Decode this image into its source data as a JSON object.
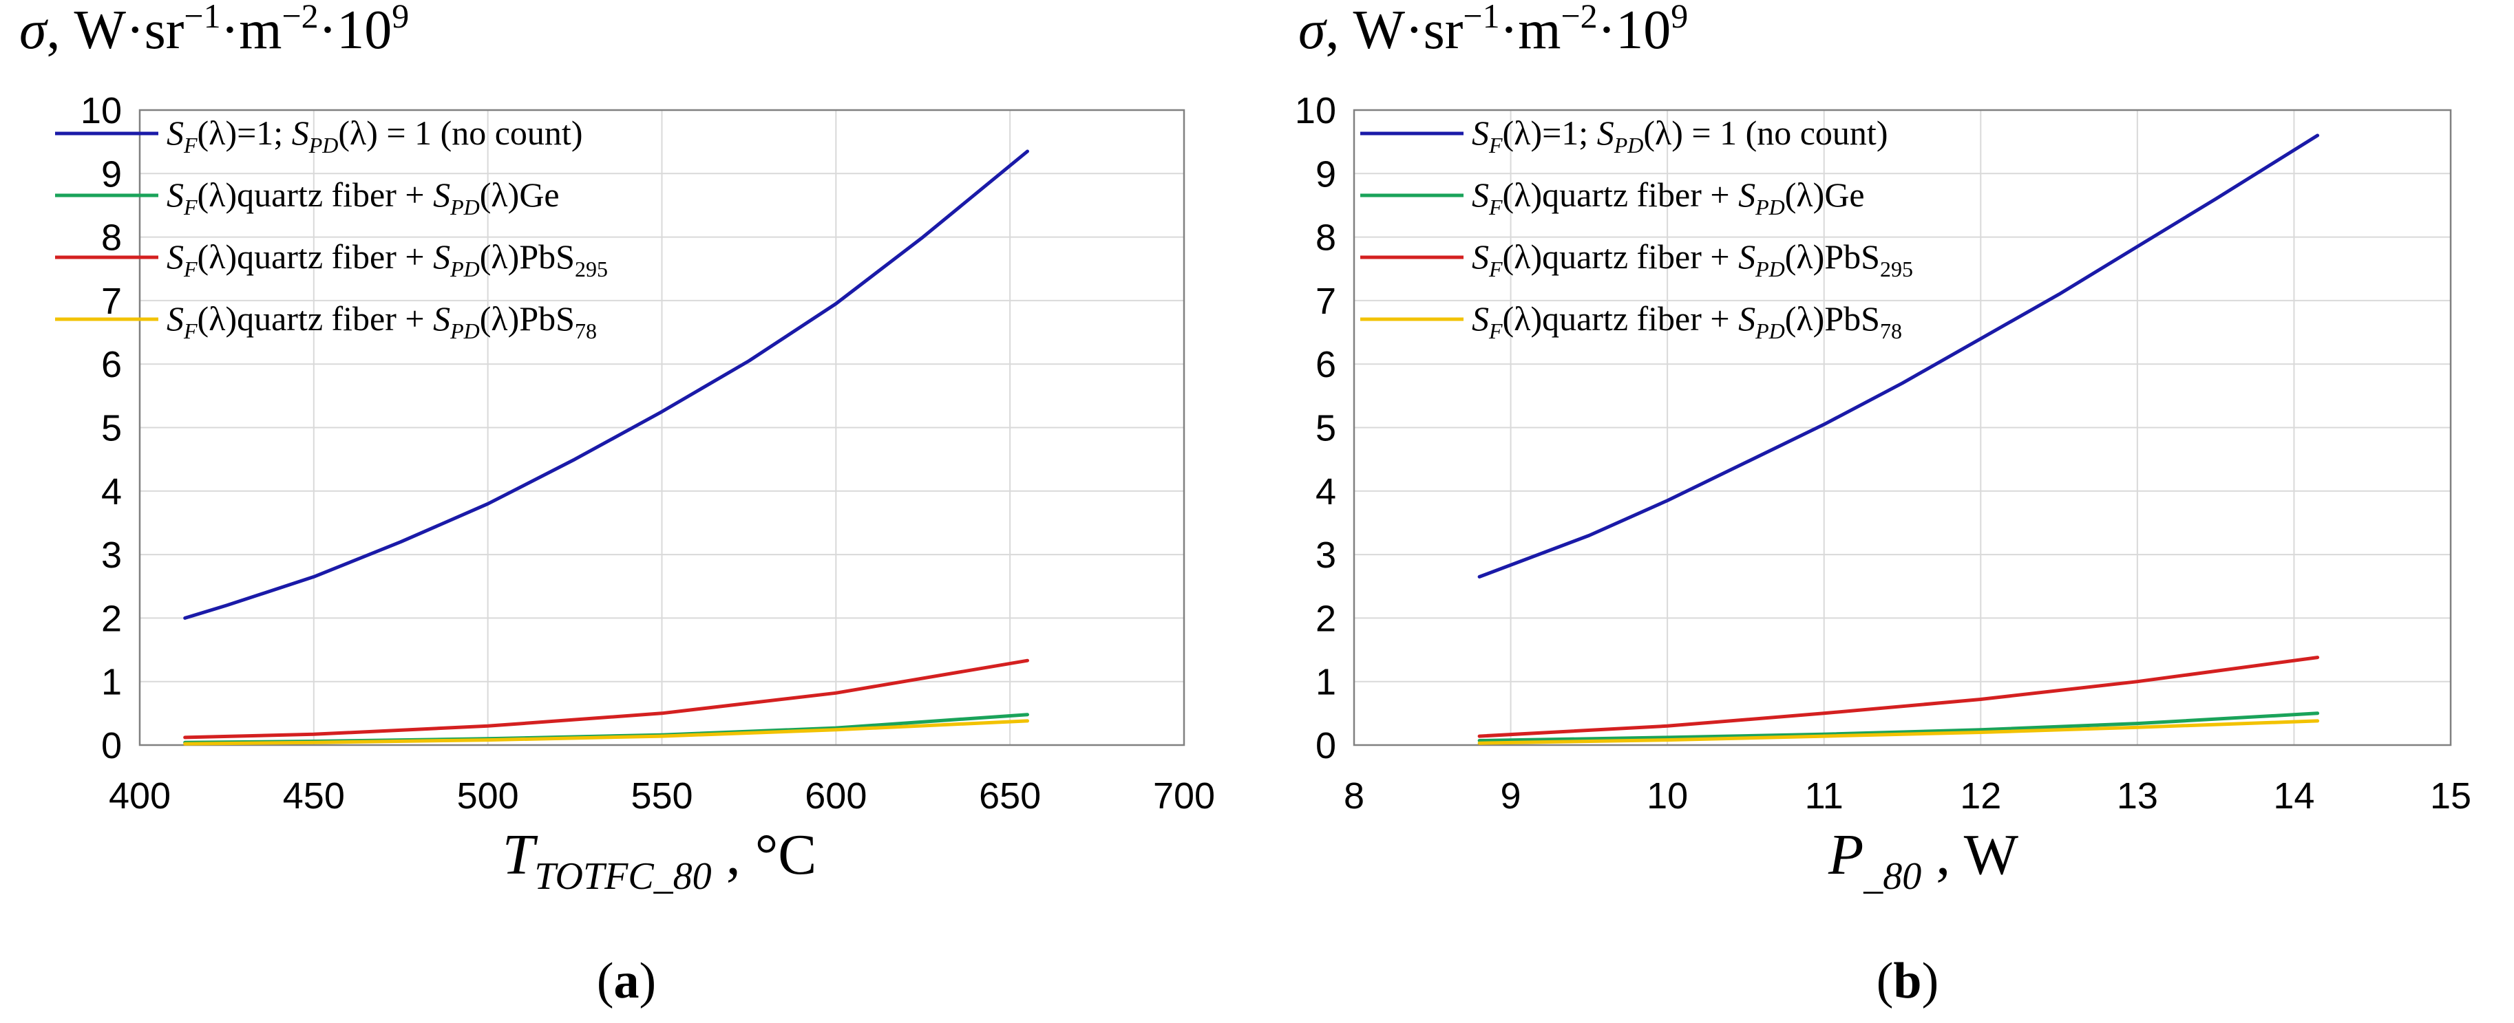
{
  "colors": {
    "blue": "#1a1aa8",
    "green": "#1aa35a",
    "red": "#d42020",
    "yellow": "#f2c200",
    "grid": "#d9d9d9",
    "axis": "#808080"
  },
  "chart_data": [
    {
      "type": "line",
      "panel_label": "(a)",
      "panel_label_letter": "a",
      "y_label": "σ, W·sr⁻¹·m⁻²·10⁹",
      "x_label_main": "T",
      "x_label_sub": "TOTFC_80",
      "x_label_unit": " , °C",
      "xlim": [
        400,
        700
      ],
      "ylim": [
        0,
        10
      ],
      "xticks": [
        "400",
        "450",
        "500",
        "550",
        "600",
        "650",
        "700"
      ],
      "yticks": [
        "0",
        "1",
        "2",
        "3",
        "4",
        "5",
        "6",
        "7",
        "8",
        "9",
        "10"
      ],
      "legend_position": "top-left",
      "series": [
        {
          "name": "S_F(λ)=1; S_PD(λ) = 1 (no count)",
          "color_key": "blue",
          "x": [
            413,
            425,
            450,
            475,
            500,
            525,
            550,
            575,
            600,
            625,
            655
          ],
          "y": [
            2.0,
            2.2,
            2.65,
            3.2,
            3.8,
            4.5,
            5.25,
            6.05,
            6.95,
            8.0,
            9.35
          ]
        },
        {
          "name": "S_F(λ)quartz fiber + S_PD(λ)Ge",
          "color_key": "green",
          "x": [
            413,
            450,
            500,
            550,
            600,
            655
          ],
          "y": [
            0.04,
            0.06,
            0.1,
            0.16,
            0.27,
            0.48
          ]
        },
        {
          "name": "S_F(λ)quartz fiber + S_PD(λ)PbS295",
          "color_key": "red",
          "x": [
            413,
            450,
            500,
            550,
            600,
            655
          ],
          "y": [
            0.12,
            0.17,
            0.3,
            0.5,
            0.82,
            1.33
          ]
        },
        {
          "name": "S_F(λ)quartz fiber + S_PD(λ)PbS78",
          "color_key": "yellow",
          "x": [
            413,
            450,
            500,
            550,
            600,
            655
          ],
          "y": [
            0.02,
            0.04,
            0.08,
            0.14,
            0.24,
            0.38
          ]
        }
      ],
      "legend": [
        {
          "color_key": "blue",
          "s1_main": "S",
          "s1_sub": "F",
          "s1_rest": "(λ)=1;  ",
          "s2_main": "S",
          "s2_sub": "PD",
          "s2_rest": "(λ) = 1 (no count)",
          "suffix_main": "",
          "suffix_sub": ""
        },
        {
          "color_key": "green",
          "s1_main": "S",
          "s1_sub": "F",
          "s1_rest": "(λ)quartz fiber + ",
          "s2_main": "S",
          "s2_sub": "PD",
          "s2_rest": "(λ)",
          "suffix_main": "Ge",
          "suffix_sub": ""
        },
        {
          "color_key": "red",
          "s1_main": "S",
          "s1_sub": "F",
          "s1_rest": "(λ)quartz fiber + ",
          "s2_main": "S",
          "s2_sub": "PD",
          "s2_rest": "(λ)",
          "suffix_main": "PbS",
          "suffix_sub": "295"
        },
        {
          "color_key": "yellow",
          "s1_main": "S",
          "s1_sub": "F",
          "s1_rest": "(λ)quartz fiber + ",
          "s2_main": "S",
          "s2_sub": "PD",
          "s2_rest": "(λ)",
          "suffix_main": "PbS",
          "suffix_sub": "78"
        }
      ]
    },
    {
      "type": "line",
      "panel_label": "(b)",
      "panel_label_letter": "b",
      "y_label": "σ, W·sr⁻¹·m⁻²·10⁹",
      "x_label_main": "P",
      "x_label_sub": "_80",
      "x_label_unit": " , W",
      "xlim": [
        8,
        15
      ],
      "ylim": [
        0,
        10
      ],
      "xticks": [
        "8",
        "9",
        "10",
        "11",
        "12",
        "13",
        "14",
        "15"
      ],
      "yticks": [
        "0",
        "1",
        "2",
        "3",
        "4",
        "5",
        "6",
        "7",
        "8",
        "9",
        "10"
      ],
      "legend_position": "top-left",
      "series": [
        {
          "name": "S_F(λ)=1; S_PD(λ) = 1 (no count)",
          "color_key": "blue",
          "x": [
            8.8,
            9.5,
            10.0,
            10.5,
            11.0,
            11.5,
            12.0,
            12.5,
            13.0,
            13.5,
            14.15
          ],
          "y": [
            2.65,
            3.3,
            3.85,
            4.45,
            5.05,
            5.7,
            6.4,
            7.1,
            7.85,
            8.6,
            9.6
          ]
        },
        {
          "name": "S_F(λ)quartz fiber + S_PD(λ)Ge",
          "color_key": "green",
          "x": [
            8.8,
            10.0,
            11.0,
            12.0,
            13.0,
            14.15
          ],
          "y": [
            0.07,
            0.12,
            0.17,
            0.24,
            0.34,
            0.5
          ]
        },
        {
          "name": "S_F(λ)quartz fiber + S_PD(λ)PbS295",
          "color_key": "red",
          "x": [
            8.8,
            10.0,
            11.0,
            12.0,
            13.0,
            14.15
          ],
          "y": [
            0.14,
            0.3,
            0.5,
            0.72,
            1.0,
            1.38
          ]
        },
        {
          "name": "S_F(λ)quartz fiber + S_PD(λ)PbS78",
          "color_key": "yellow",
          "x": [
            8.8,
            10.0,
            11.0,
            12.0,
            13.0,
            14.15
          ],
          "y": [
            0.03,
            0.08,
            0.14,
            0.2,
            0.28,
            0.38
          ]
        }
      ],
      "legend": [
        {
          "color_key": "blue",
          "s1_main": "S",
          "s1_sub": "F",
          "s1_rest": "(λ)=1;  ",
          "s2_main": "S",
          "s2_sub": "PD",
          "s2_rest": "(λ) = 1 (no count)",
          "suffix_main": "",
          "suffix_sub": ""
        },
        {
          "color_key": "green",
          "s1_main": "S",
          "s1_sub": "F",
          "s1_rest": "(λ)quartz fiber + ",
          "s2_main": "S",
          "s2_sub": "PD",
          "s2_rest": "(λ)",
          "suffix_main": "Ge",
          "suffix_sub": ""
        },
        {
          "color_key": "red",
          "s1_main": "S",
          "s1_sub": "F",
          "s1_rest": "(λ)quartz fiber + ",
          "s2_main": "S",
          "s2_sub": "PD",
          "s2_rest": "(λ)",
          "suffix_main": "PbS",
          "suffix_sub": "295"
        },
        {
          "color_key": "yellow",
          "s1_main": "S",
          "s1_sub": "F",
          "s1_rest": "(λ)quartz fiber + ",
          "s2_main": "S",
          "s2_sub": "PD",
          "s2_rest": "(λ)",
          "suffix_main": "PbS",
          "suffix_sub": "78"
        }
      ]
    }
  ]
}
